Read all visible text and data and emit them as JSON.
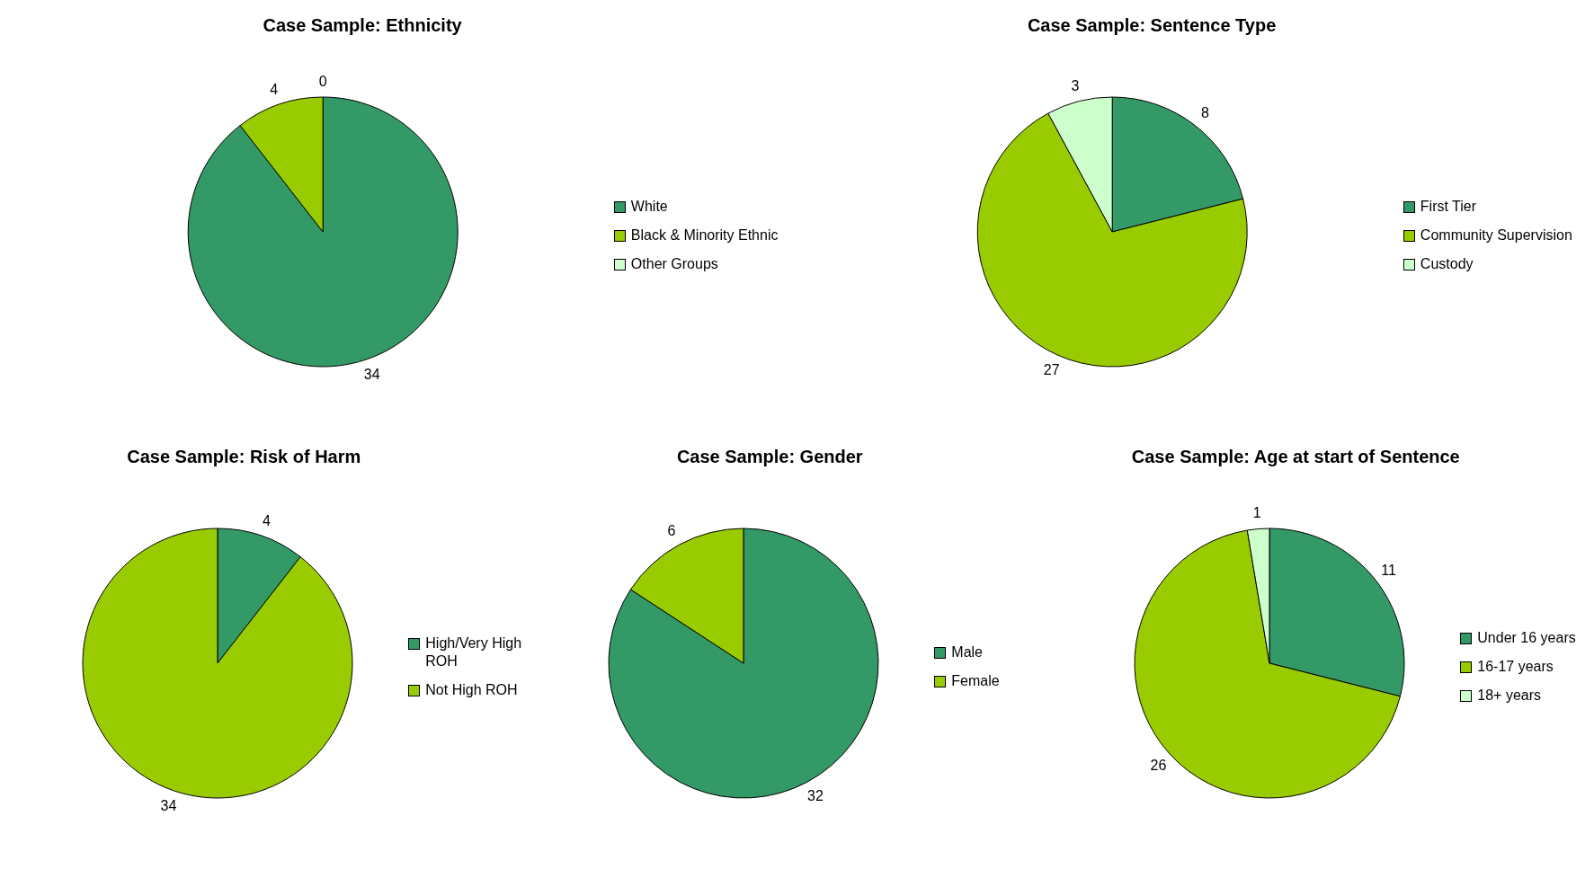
{
  "chart_data": [
    {
      "type": "pie",
      "title": "Case Sample: Ethnicity",
      "categories": [
        "White",
        "Black & Minority Ethnic",
        "Other Groups"
      ],
      "values": [
        34,
        4,
        0
      ],
      "value_labels": [
        "34",
        "4",
        "0"
      ],
      "colors": [
        "#339966",
        "#99cc00",
        "#ccffcc"
      ],
      "legend": "right"
    },
    {
      "type": "pie",
      "title": "Case Sample: Sentence Type",
      "categories": [
        "First Tier",
        "Community Supervision",
        "Custody"
      ],
      "values": [
        8,
        27,
        3
      ],
      "colors": [
        "#339966",
        "#99cc00",
        "#ccffcc"
      ],
      "data_labels": true,
      "legend": "right"
    },
    {
      "type": "pie",
      "title": "Case Sample: Risk of Harm",
      "categories": [
        "High/Very High ROH",
        "Not High ROH"
      ],
      "values": [
        4,
        34
      ],
      "colors": [
        "#339966",
        "#99cc00"
      ],
      "data_labels": true,
      "legend": "right"
    },
    {
      "type": "pie",
      "title": "Case Sample: Gender",
      "categories": [
        "Male",
        "Female"
      ],
      "values": [
        32,
        6
      ],
      "colors": [
        "#339966",
        "#99cc00"
      ],
      "data_labels": true,
      "legend": "right"
    },
    {
      "type": "pie",
      "title": "Case Sample: Age at start of Sentence",
      "categories": [
        "Under 16 years",
        "16-17 years",
        "18+ years"
      ],
      "values": [
        11,
        26,
        1
      ],
      "colors": [
        "#339966",
        "#99cc00",
        "#ccffcc"
      ],
      "data_labels": true,
      "legend": "right"
    }
  ]
}
